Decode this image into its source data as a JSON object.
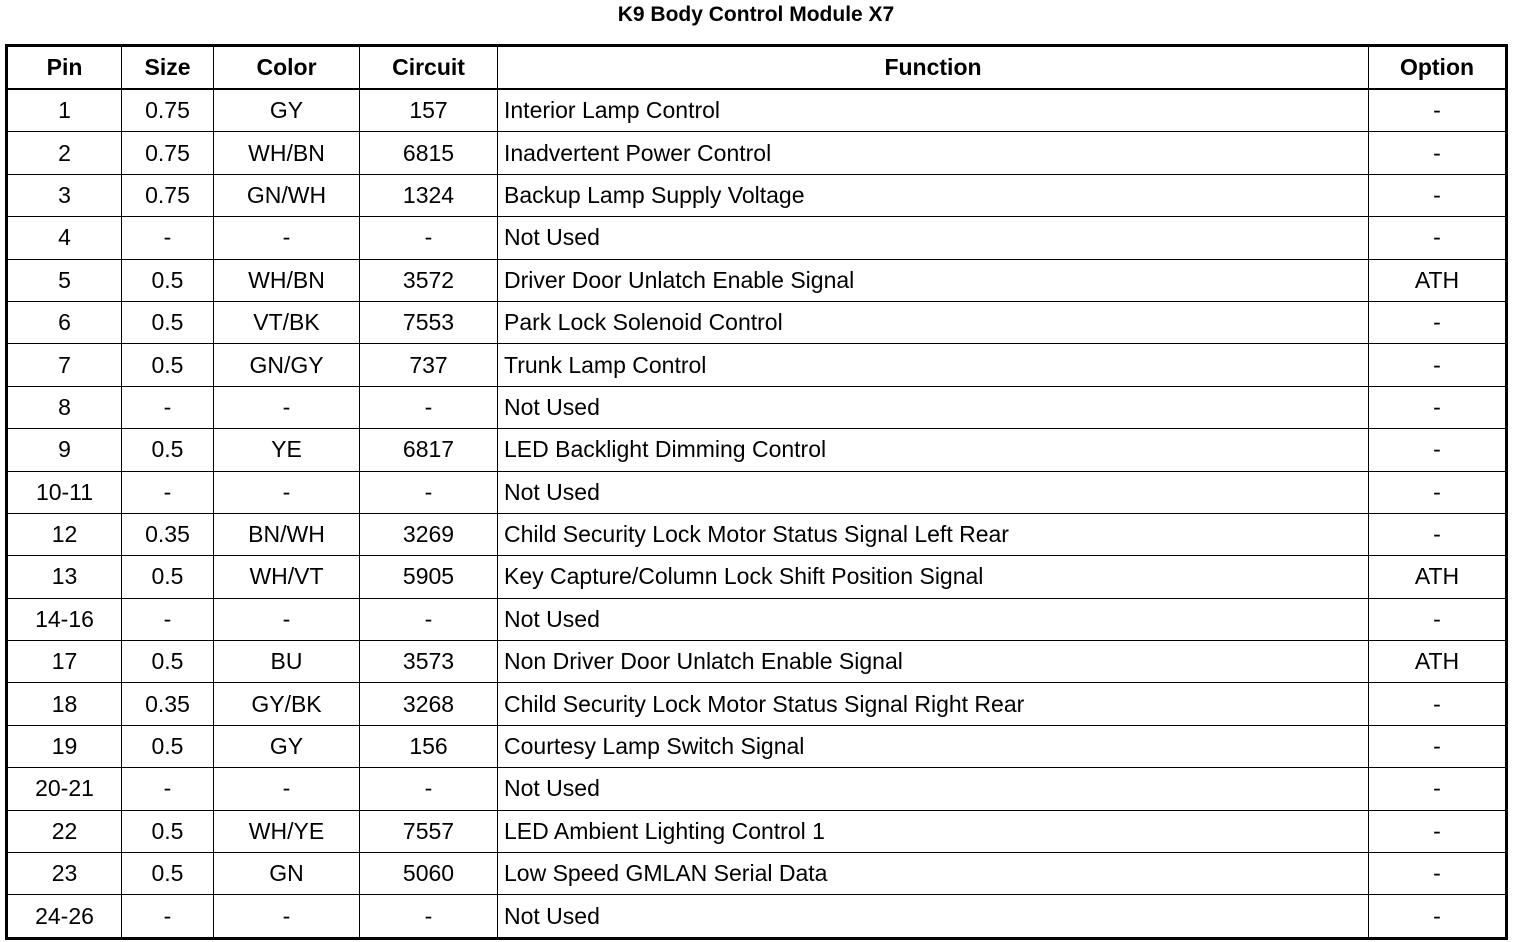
{
  "title": "K9 Body Control Module X7",
  "columns": [
    "Pin",
    "Size",
    "Color",
    "Circuit",
    "Function",
    "Option"
  ],
  "rows": [
    [
      "1",
      "0.75",
      "GY",
      "157",
      "Interior Lamp Control",
      "-"
    ],
    [
      "2",
      "0.75",
      "WH/BN",
      "6815",
      "Inadvertent Power Control",
      "-"
    ],
    [
      "3",
      "0.75",
      "GN/WH",
      "1324",
      "Backup Lamp Supply Voltage",
      "-"
    ],
    [
      "4",
      "-",
      "-",
      "-",
      "Not Used",
      "-"
    ],
    [
      "5",
      "0.5",
      "WH/BN",
      "3572",
      "Driver Door Unlatch Enable Signal",
      "ATH"
    ],
    [
      "6",
      "0.5",
      "VT/BK",
      "7553",
      "Park Lock Solenoid Control",
      "-"
    ],
    [
      "7",
      "0.5",
      "GN/GY",
      "737",
      "Trunk Lamp Control",
      "-"
    ],
    [
      "8",
      "-",
      "-",
      "-",
      "Not Used",
      "-"
    ],
    [
      "9",
      "0.5",
      "YE",
      "6817",
      "LED Backlight Dimming Control",
      "-"
    ],
    [
      "10-11",
      "-",
      "-",
      "-",
      "Not Used",
      "-"
    ],
    [
      "12",
      "0.35",
      "BN/WH",
      "3269",
      "Child Security Lock Motor Status Signal Left Rear",
      "-"
    ],
    [
      "13",
      "0.5",
      "WH/VT",
      "5905",
      "Key Capture/Column Lock Shift Position Signal",
      "ATH"
    ],
    [
      "14-16",
      "-",
      "-",
      "-",
      "Not Used",
      "-"
    ],
    [
      "17",
      "0.5",
      "BU",
      "3573",
      "Non Driver Door Unlatch Enable Signal",
      "ATH"
    ],
    [
      "18",
      "0.35",
      "GY/BK",
      "3268",
      "Child Security Lock Motor Status Signal Right Rear",
      "-"
    ],
    [
      "19",
      "0.5",
      "GY",
      "156",
      "Courtesy Lamp Switch Signal",
      "-"
    ],
    [
      "20-21",
      "-",
      "-",
      "-",
      "Not Used",
      "-"
    ],
    [
      "22",
      "0.5",
      "WH/YE",
      "7557",
      "LED Ambient Lighting Control 1",
      "-"
    ],
    [
      "23",
      "0.5",
      "GN",
      "5060",
      "Low Speed GMLAN Serial Data",
      "-"
    ],
    [
      "24-26",
      "-",
      "-",
      "-",
      "Not Used",
      "-"
    ]
  ]
}
